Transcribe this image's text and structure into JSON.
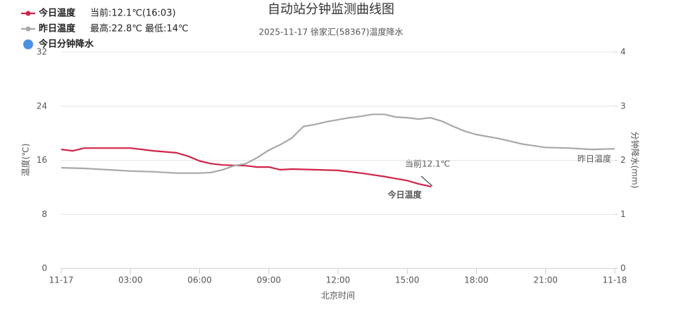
{
  "chart_data": {
    "type": "line",
    "title": "自动站分钟监测曲线图",
    "subtitle": "2025-11-17 徐家汇(58367)温度降水",
    "x_label": "北京时间",
    "y_label": "温度(℃)",
    "y2_label": "分钟降水(mm)",
    "annotations": {
      "current_info": "当前:12.1℃(16:03)",
      "extreme_info": "最高:22.8℃ 最低:14℃",
      "current_label": "当前12.1℃"
    },
    "xlim": [
      0,
      24
    ],
    "xticks": [
      {
        "value": 0,
        "label": "11-17"
      },
      {
        "value": 3,
        "label": "03:00"
      },
      {
        "value": 6,
        "label": "06:00"
      },
      {
        "value": 9,
        "label": "09:00"
      },
      {
        "value": 12,
        "label": "12:00"
      },
      {
        "value": 15,
        "label": "15:00"
      },
      {
        "value": 18,
        "label": "18:00"
      },
      {
        "value": 21,
        "label": "21:00"
      },
      {
        "value": 24,
        "label": "11-18"
      }
    ],
    "ylim": [
      0,
      32
    ],
    "yticks": [
      0,
      8,
      16,
      24,
      32
    ],
    "y2lim": [
      0,
      4
    ],
    "y2ticks": [
      0,
      1,
      2,
      3,
      4
    ],
    "grid": true,
    "series": [
      {
        "name": "今日温度",
        "color": "#d0254a",
        "x": [
          0,
          0.5,
          1,
          2,
          3,
          3.5,
          4,
          5,
          5.5,
          6,
          6.5,
          7,
          8,
          8.5,
          9,
          9.5,
          10,
          11,
          12,
          13,
          14,
          14.5,
          15,
          15.5,
          16.05
        ],
        "values": [
          17.6,
          17.4,
          17.8,
          17.8,
          17.8,
          17.6,
          17.4,
          17.1,
          16.6,
          15.9,
          15.5,
          15.3,
          15.2,
          15.0,
          15.0,
          14.6,
          14.7,
          14.6,
          14.5,
          14.1,
          13.6,
          13.3,
          13.0,
          12.5,
          12.1
        ]
      },
      {
        "name": "昨日温度",
        "color": "#a8a8a8",
        "x": [
          0,
          1,
          2,
          3,
          4,
          5,
          6,
          6.5,
          7,
          7.5,
          8,
          8.5,
          9,
          9.5,
          10,
          10.5,
          11,
          11.5,
          12,
          12.5,
          13,
          13.5,
          14,
          14.5,
          15,
          15.5,
          16,
          16.5,
          17,
          17.5,
          18,
          19,
          20,
          21,
          22,
          23,
          24
        ],
        "values": [
          14.9,
          14.8,
          14.6,
          14.4,
          14.3,
          14.1,
          14.1,
          14.2,
          14.6,
          15.2,
          15.5,
          16.4,
          17.5,
          18.3,
          19.3,
          21.0,
          21.3,
          21.7,
          22.0,
          22.3,
          22.5,
          22.8,
          22.8,
          22.4,
          22.3,
          22.1,
          22.3,
          21.8,
          21.0,
          20.3,
          19.8,
          19.2,
          18.4,
          17.9,
          17.8,
          17.6,
          17.7
        ]
      },
      {
        "name": "今日分钟降水",
        "color": "#4a90e2",
        "axis": "y2",
        "x": [],
        "values": []
      }
    ]
  }
}
